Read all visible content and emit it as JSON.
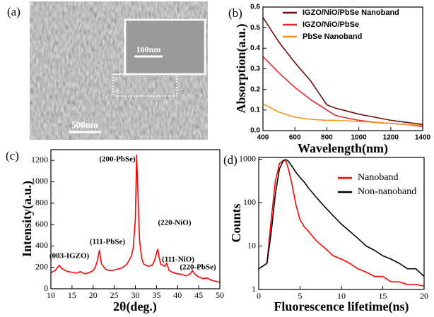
{
  "image_panel": {
    "label": "(a)",
    "scale_bar": "500nm",
    "inset_scale_bar": "100nm"
  },
  "chart_data": [
    {
      "type": "line",
      "label": "(b)",
      "xlabel": "Wavelength(nm)",
      "ylabel": "Absorption(a.u.)",
      "x": [
        400,
        500,
        600,
        700,
        800,
        850,
        900,
        1000,
        1100,
        1200,
        1300,
        1400
      ],
      "series": [
        {
          "name": "IGZO/NiO/PbSe Nanoband",
          "color": "#6b0f0f",
          "values": [
            0.55,
            0.43,
            0.33,
            0.24,
            0.125,
            0.11,
            0.1,
            0.08,
            0.065,
            0.05,
            0.04,
            0.03
          ]
        },
        {
          "name": "IGZO/NiO/PbSe",
          "color": "#e8262a",
          "values": [
            0.36,
            0.28,
            0.21,
            0.15,
            0.1,
            0.075,
            0.065,
            0.05,
            0.04,
            0.035,
            0.03,
            0.02
          ]
        },
        {
          "name": "PbSe Nanoband",
          "color": "#f7931e",
          "values": [
            0.13,
            0.09,
            0.065,
            0.055,
            0.05,
            0.05,
            0.048,
            0.045,
            0.04,
            0.035,
            0.03,
            0.025
          ]
        }
      ],
      "xlim": [
        400,
        1400
      ],
      "xticks": [
        400,
        600,
        800,
        1000,
        1200,
        1400
      ],
      "ylim": [
        0,
        0.6
      ],
      "yticks": [
        {
          "value": 0,
          "label": "0.0"
        },
        0.1,
        0.2,
        0.3,
        0.4,
        0.5,
        0.6
      ],
      "legend": "upper right"
    },
    {
      "type": "line",
      "label": "(c)",
      "xlabel": "2θ(deg.)",
      "ylabel": "Intensity(a.u.)",
      "x": [
        10,
        11,
        12,
        12.5,
        13,
        14,
        15,
        16,
        17,
        18,
        19,
        20,
        20.5,
        21,
        21.5,
        22,
        23,
        24,
        25,
        26,
        27,
        28,
        29,
        29.5,
        30,
        30.3,
        30.6,
        31,
        31.5,
        32,
        33,
        34,
        34.5,
        35,
        35.3,
        35.6,
        36,
        37,
        37.4,
        38,
        39,
        40,
        41,
        42,
        43,
        43.5,
        44,
        45,
        46,
        47,
        48,
        49,
        50
      ],
      "series": [
        {
          "color": "#ff0000",
          "values": [
            150,
            170,
            220,
            190,
            180,
            160,
            155,
            145,
            160,
            140,
            150,
            170,
            200,
            260,
            360,
            230,
            180,
            170,
            175,
            185,
            200,
            230,
            300,
            380,
            650,
            1250,
            900,
            450,
            280,
            230,
            210,
            220,
            260,
            330,
            370,
            300,
            230,
            210,
            240,
            170,
            150,
            140,
            135,
            120,
            140,
            170,
            140,
            110,
            95,
            100,
            80,
            70,
            60
          ]
        }
      ],
      "xlim": [
        10,
        50
      ],
      "xticks": [
        10,
        15,
        20,
        25,
        30,
        35,
        40,
        45,
        50
      ],
      "ylim": [
        0,
        1300
      ],
      "yticks": [
        0,
        200,
        400,
        600,
        800,
        1000,
        1200
      ],
      "annotations": [
        "(003-IGZO)",
        "(111-PbSe)",
        "(200-PbSe)",
        "(220-NiO)",
        "(111-NiO)",
        "(220-PbSe)"
      ]
    },
    {
      "type": "line",
      "label": "(d)",
      "xlabel": "Fluorescence lifetime(ns)",
      "ylabel": "Counts",
      "x": [
        0,
        1,
        1.5,
        2,
        2.5,
        3,
        3.3,
        3.6,
        4,
        4.5,
        5,
        5.5,
        6,
        7,
        8,
        9,
        10,
        11,
        12,
        13,
        14,
        15,
        16,
        17,
        18,
        19,
        20
      ],
      "series": [
        {
          "name": "Nanoband",
          "color": "#ff0000",
          "values": [
            3,
            4,
            40,
            300,
            800,
            950,
            900,
            600,
            280,
            90,
            40,
            28,
            22,
            13,
            9,
            6,
            5,
            4,
            3,
            2.5,
            2,
            2,
            1.5,
            1.5,
            1.3,
            1.3,
            1.2
          ]
        },
        {
          "name": "Non-nanoband",
          "color": "#000000",
          "values": [
            3,
            4,
            20,
            150,
            600,
            950,
            980,
            900,
            700,
            500,
            380,
            300,
            220,
            130,
            80,
            50,
            32,
            22,
            15,
            10,
            8,
            6,
            5,
            4,
            3,
            3,
            2
          ]
        }
      ],
      "xlim": [
        0,
        20
      ],
      "xticks": [
        0,
        5,
        10,
        15,
        20
      ],
      "ylim": [
        1,
        1100
      ],
      "yticks": [
        1,
        10,
        100,
        1000
      ],
      "log_y": true,
      "legend": "upper right"
    }
  ]
}
